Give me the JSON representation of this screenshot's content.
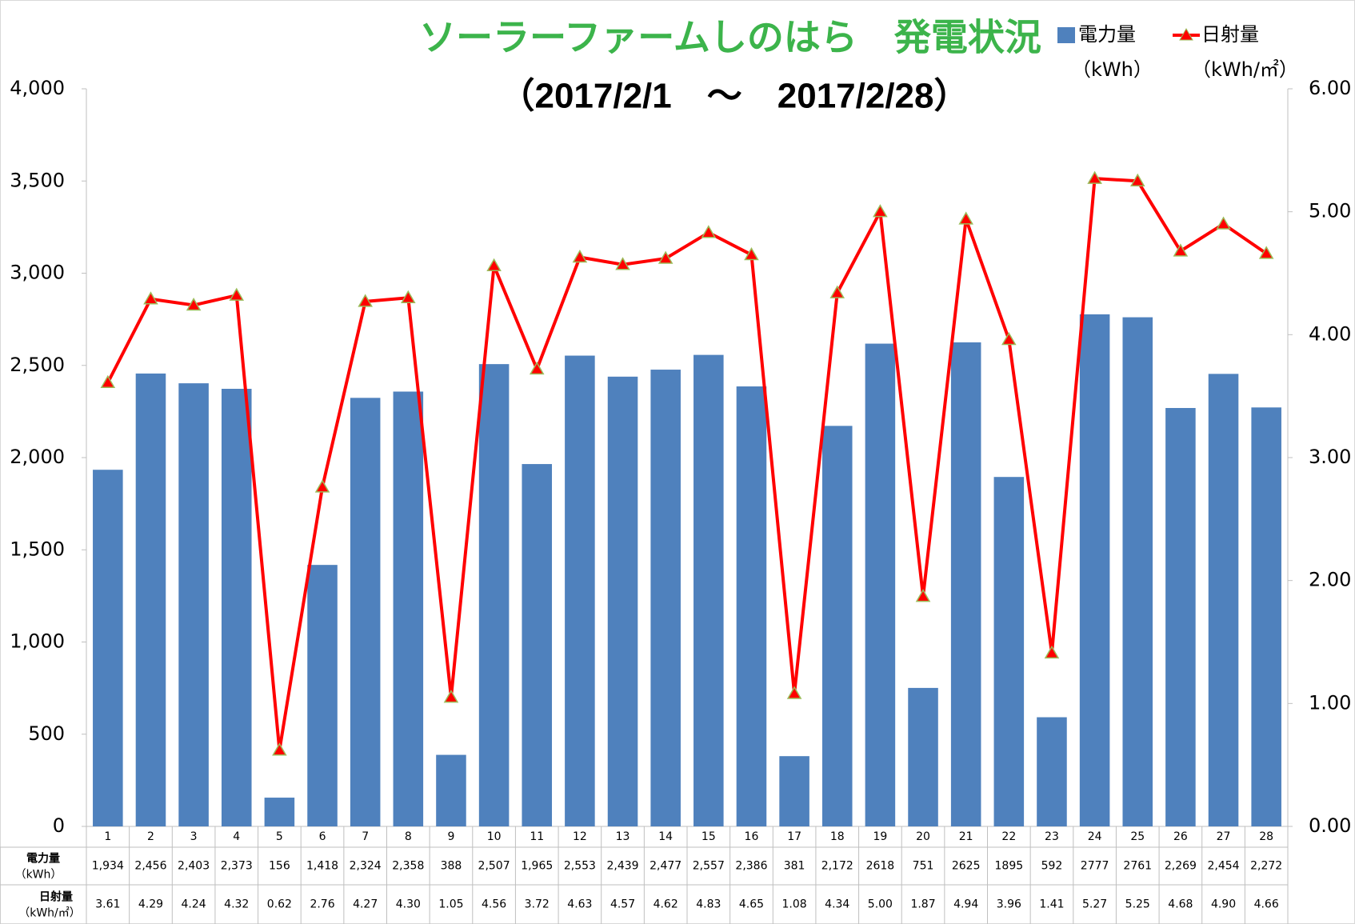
{
  "chart_data": {
    "type": "bar",
    "title": "ソーラーファームしのはら　発電状況",
    "subtitle": "（2017/2/1　～　2017/2/28）",
    "categories": [
      "1",
      "2",
      "3",
      "4",
      "5",
      "6",
      "7",
      "8",
      "9",
      "10",
      "11",
      "12",
      "13",
      "14",
      "15",
      "16",
      "17",
      "18",
      "19",
      "20",
      "21",
      "22",
      "23",
      "24",
      "25",
      "26",
      "27",
      "28"
    ],
    "series": [
      {
        "name": "電力量",
        "unit": "（kWh）",
        "type": "bar",
        "color": "#4f81bd",
        "values": [
          1934,
          2456,
          2403,
          2373,
          156,
          1418,
          2324,
          2358,
          388,
          2507,
          1965,
          2553,
          2439,
          2477,
          2557,
          2386,
          381,
          2172,
          2618,
          751,
          2625,
          1895,
          592,
          2777,
          2761,
          2269,
          2454,
          2272
        ],
        "value_labels": [
          "1,934",
          "2,456",
          "2,403",
          "2,373",
          "156",
          "1,418",
          "2,324",
          "2,358",
          "388",
          "2,507",
          "1,965",
          "2,553",
          "2,439",
          "2,477",
          "2,557",
          "2,386",
          "381",
          "2,172",
          "2618",
          "751",
          "2625",
          "1895",
          "592",
          "2777",
          "2761",
          "2,269",
          "2,454",
          "2,272"
        ]
      },
      {
        "name": "日射量",
        "unit": "（kWh/㎡）",
        "type": "line",
        "axis": "y2",
        "color": "#ff0000",
        "values": [
          3.61,
          4.29,
          4.24,
          4.32,
          0.62,
          2.76,
          4.27,
          4.3,
          1.05,
          4.56,
          3.72,
          4.63,
          4.57,
          4.62,
          4.83,
          4.65,
          1.08,
          4.34,
          5.0,
          1.87,
          4.94,
          3.96,
          1.41,
          5.27,
          5.25,
          4.68,
          4.9,
          4.66
        ],
        "value_labels": [
          "3.61",
          "4.29",
          "4.24",
          "4.32",
          "0.62",
          "2.76",
          "4.27",
          "4.30",
          "1.05",
          "4.56",
          "3.72",
          "4.63",
          "4.57",
          "4.62",
          "4.83",
          "4.65",
          "1.08",
          "4.34",
          "5.00",
          "1.87",
          "4.94",
          "3.96",
          "1.41",
          "5.27",
          "5.25",
          "4.68",
          "4.90",
          "4.66"
        ]
      }
    ],
    "ylim": [
      0,
      4000
    ],
    "yticks": [
      0,
      500,
      {
        "value": 1000,
        "label": "1,000"
      },
      {
        "value": 1500,
        "label": "1,500"
      },
      {
        "value": 2000,
        "label": "2,000"
      },
      {
        "value": 2500,
        "label": "2,500"
      },
      {
        "value": 3000,
        "label": "3,000"
      },
      {
        "value": 3500,
        "label": "3,500"
      },
      {
        "value": 4000,
        "label": "4,000"
      }
    ],
    "y2lim": [
      0,
      6
    ],
    "y2ticks": [
      {
        "value": 0,
        "label": "0.00"
      },
      {
        "value": 1,
        "label": "1.00"
      },
      {
        "value": 2,
        "label": "2.00"
      },
      {
        "value": 3,
        "label": "3.00"
      },
      {
        "value": 4,
        "label": "4.00"
      },
      {
        "value": 5,
        "label": "5.00"
      },
      {
        "value": 6,
        "label": "6.00"
      }
    ],
    "data_table": true
  }
}
